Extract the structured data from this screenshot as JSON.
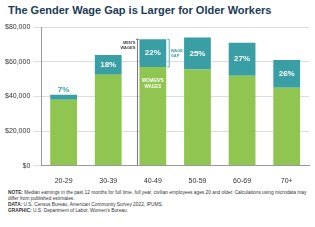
{
  "chart_data": {
    "type": "bar",
    "title": "The Gender Wage Gap is Larger for Older Workers",
    "categories": [
      "20-29",
      "30-39",
      "40-49",
      "50-59",
      "60-69",
      "70+"
    ],
    "series": [
      {
        "name": "WOMEN'S WAGES",
        "color": "#8fc550",
        "values": [
          38000,
          52500,
          57000,
          55500,
          52000,
          45000
        ]
      },
      {
        "name": "WAGE GAP",
        "color": "#3a9fa4",
        "values": [
          3000,
          11500,
          16000,
          18500,
          19000,
          16000
        ]
      }
    ],
    "stacked": true,
    "ylim": [
      0,
      80000
    ],
    "yticks": [
      {
        "value": 0,
        "label": "$0"
      },
      {
        "value": 20000,
        "label": "$20,000"
      },
      {
        "value": 40000,
        "label": "$40,000"
      },
      {
        "value": 60000,
        "label": "$60,000"
      },
      {
        "value": 80000,
        "label": "$80,000"
      }
    ],
    "grid": true,
    "annotations": [
      {
        "category": "20-29",
        "text": "7%"
      },
      {
        "category": "30-39",
        "text": "18%"
      },
      {
        "category": "40-49",
        "text": "22%"
      },
      {
        "category": "50-59",
        "text": "25%"
      },
      {
        "category": "60-69",
        "text": "27%"
      },
      {
        "category": "70+",
        "text": "26%"
      }
    ],
    "callout": {
      "category": "40-49",
      "text": "MEN'S WAGES"
    },
    "notes": [
      "NOTE: Median earnings in the past 12 months for full time, full year, civilian employees ages 20 and older. Calculations using microdata may differ from published estimates.",
      "DATA: U.S. Census Bureau, American Community Survey 2022, IPUMS.",
      "GRAPHIC: U.S. Department of Labor, Women's Bureau."
    ]
  }
}
